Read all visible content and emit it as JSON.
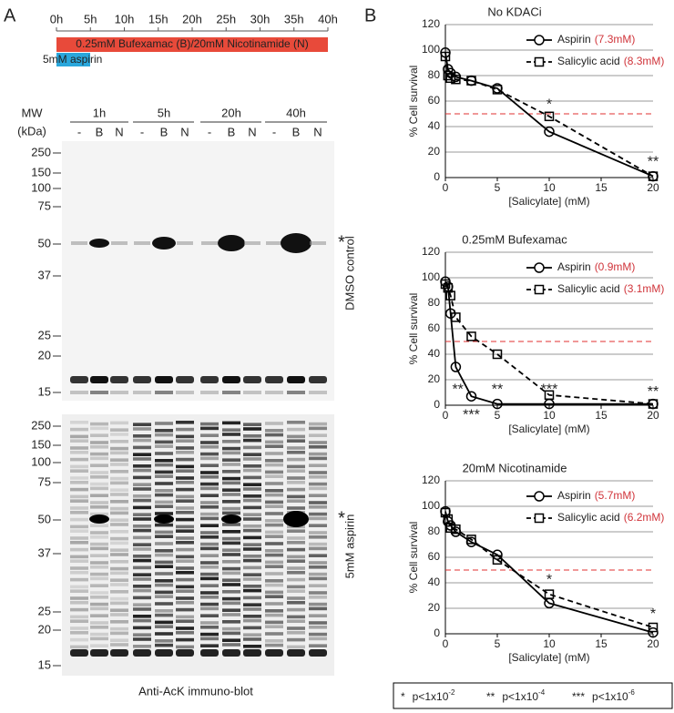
{
  "panel_a": {
    "label": "A",
    "timeline": {
      "ticks": [
        "0h",
        "5h",
        "10h",
        "15h",
        "20h",
        "25h",
        "30h",
        "35h",
        "40h"
      ],
      "treatment": "0.25mM Bufexamac (B)/20mM Nicotinamide (N)",
      "aspirin": "5mM aspirin"
    },
    "blot": {
      "mw_header": "MW",
      "unit_header": "(kDa)",
      "times": [
        "1h",
        "5h",
        "20h",
        "40h"
      ],
      "lanes": [
        "-",
        "B",
        "N",
        "-",
        "B",
        "N",
        "-",
        "B",
        "N",
        "-",
        "B",
        "N"
      ],
      "top": {
        "mw": [
          "250",
          "150",
          "100",
          "75",
          "50",
          "37",
          "25",
          "20",
          "15"
        ],
        "side_label": "DMSO control",
        "marker": "*"
      },
      "bottom": {
        "mw": [
          "250",
          "150",
          "100",
          "75",
          "50",
          "37",
          "25",
          "20",
          "15"
        ],
        "side_label": "5mM aspirin",
        "marker": "*"
      },
      "caption": "Anti-AcK immuno-blot"
    }
  },
  "panel_b_label": "B",
  "chart_data": [
    {
      "type": "line",
      "title": "No KDACi",
      "x": [
        0,
        0.25,
        0.5,
        1,
        2.5,
        5,
        10,
        20
      ],
      "series": [
        {
          "name": "Aspirin",
          "ic50": "(7.3mM)",
          "color": "#000000",
          "marker": "circle",
          "dashed": false,
          "values": [
            98,
            85,
            82,
            79,
            76,
            70,
            36,
            1
          ]
        },
        {
          "name": "Salicylic acid",
          "ic50": "(8.3mM)",
          "color": "#000000",
          "marker": "square",
          "dashed": true,
          "values": [
            95,
            80,
            78,
            77,
            76,
            69,
            48,
            1
          ]
        }
      ],
      "xlabel": "[Salicylate] (mM)",
      "ylabel": "% Cell survival",
      "xlim": [
        0,
        20
      ],
      "ylim": [
        0,
        120
      ],
      "xticks": [
        0,
        5,
        10,
        15,
        20
      ],
      "yticks": [
        0,
        20,
        40,
        60,
        80,
        100,
        120
      ],
      "grid": true,
      "legend": "upper right",
      "reference_line": {
        "y": 50,
        "color": "#e03030"
      },
      "annotations": [
        {
          "text": "*",
          "x": 10,
          "y": 57
        },
        {
          "text": "**",
          "x": 20,
          "y": 12
        }
      ]
    },
    {
      "type": "line",
      "title": "0.25mM Bufexamac",
      "x": [
        0,
        0.25,
        0.5,
        1,
        2.5,
        5,
        10,
        20
      ],
      "series": [
        {
          "name": "Aspirin",
          "ic50": "(0.9mM)",
          "color": "#000000",
          "marker": "circle",
          "dashed": false,
          "values": [
            97,
            93,
            72,
            30,
            7,
            1,
            1,
            1
          ]
        },
        {
          "name": "Salicylic acid",
          "ic50": "(3.1mM)",
          "color": "#000000",
          "marker": "square",
          "dashed": true,
          "values": [
            95,
            92,
            86,
            69,
            54,
            40,
            8,
            1
          ]
        }
      ],
      "xlabel": "[Salicylate] (mM)",
      "ylabel": "% Cell survival",
      "xlim": [
        0,
        20
      ],
      "ylim": [
        0,
        120
      ],
      "xticks": [
        0,
        5,
        10,
        15,
        20
      ],
      "yticks": [
        0,
        20,
        40,
        60,
        80,
        100,
        120
      ],
      "grid": true,
      "legend": "upper right",
      "reference_line": {
        "y": 50,
        "color": "#e03030"
      },
      "annotations": [
        {
          "text": "**",
          "x": 1.2,
          "y": 12
        },
        {
          "text": "***",
          "x": 2.5,
          "y": -8
        },
        {
          "text": "**",
          "x": 5,
          "y": 12
        },
        {
          "text": "***",
          "x": 10,
          "y": 12
        },
        {
          "text": "**",
          "x": 20,
          "y": 10
        }
      ]
    },
    {
      "type": "line",
      "title": "20mM Nicotinamide",
      "x": [
        0,
        0.25,
        0.5,
        1,
        2.5,
        5,
        10,
        20
      ],
      "series": [
        {
          "name": "Aspirin",
          "ic50": "(5.7mM)",
          "color": "#000000",
          "marker": "circle",
          "dashed": false,
          "values": [
            96,
            88,
            85,
            80,
            72,
            62,
            24,
            1
          ]
        },
        {
          "name": "Salicylic acid",
          "ic50": "(6.2mM)",
          "color": "#000000",
          "marker": "square",
          "dashed": true,
          "values": [
            95,
            90,
            83,
            82,
            74,
            58,
            31,
            5
          ]
        }
      ],
      "xlabel": "[Salicylate] (mM)",
      "ylabel": "% Cell survival",
      "xlim": [
        0,
        20
      ],
      "ylim": [
        0,
        120
      ],
      "xticks": [
        0,
        5,
        10,
        15,
        20
      ],
      "yticks": [
        0,
        20,
        40,
        60,
        80,
        100,
        120
      ],
      "grid": true,
      "legend": "upper right",
      "reference_line": {
        "y": 50,
        "color": "#e03030"
      },
      "annotations": [
        {
          "text": "*",
          "x": 10,
          "y": 42
        },
        {
          "text": "*",
          "x": 20,
          "y": 15
        }
      ]
    }
  ],
  "significance_key": [
    {
      "stars": "*",
      "text": "p<1x10",
      "exp": "-2"
    },
    {
      "stars": "**",
      "text": "p<1x10",
      "exp": "-4"
    },
    {
      "stars": "***",
      "text": "p<1x10",
      "exp": "-6"
    }
  ]
}
